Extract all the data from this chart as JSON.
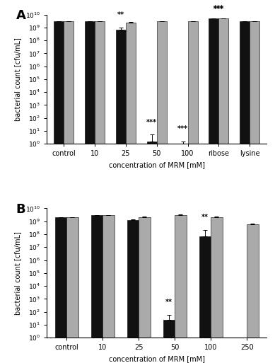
{
  "panel_A": {
    "categories": [
      "control",
      "10",
      "25",
      "50",
      "100",
      "ribose",
      "lysine"
    ],
    "black_values": [
      3000000000.0,
      3000000000.0,
      700000000.0,
      1.5,
      1.0,
      5000000000.0,
      3000000000.0
    ],
    "grey_values": [
      3000000000.0,
      3000000000.0,
      2500000000.0,
      3000000000.0,
      3000000000.0,
      5000000000.0,
      3000000000.0
    ],
    "black_errors": [
      150000000.0,
      150000000.0,
      250000000.0,
      3.5,
      0.5,
      200000000.0,
      150000000.0
    ],
    "grey_errors": [
      150000000.0,
      100000000.0,
      300000000.0,
      150000000.0,
      150000000.0,
      150000000.0,
      100000000.0
    ],
    "significance": [
      "",
      "",
      "**",
      "***",
      "***",
      "***",
      ""
    ],
    "sig_on_black": [
      false,
      false,
      true,
      true,
      true,
      false,
      false
    ],
    "sig_on_grey": [
      false,
      false,
      false,
      false,
      false,
      true,
      false
    ],
    "ylabel": "bacterial count [cfu/mL]",
    "xlabel": "concentration of MRM [mM]",
    "panel_label": "A"
  },
  "panel_B": {
    "categories": [
      "control",
      "10",
      "25",
      "50",
      "100",
      "250"
    ],
    "black_values": [
      2000000000.0,
      3000000000.0,
      1200000000.0,
      25,
      70000000.0,
      null
    ],
    "grey_values": [
      2000000000.0,
      3000000000.0,
      2000000000.0,
      3000000000.0,
      2000000000.0,
      600000000.0
    ],
    "black_errors": [
      150000000.0,
      150000000.0,
      200000000.0,
      35,
      150000000.0,
      null
    ],
    "grey_errors": [
      150000000.0,
      150000000.0,
      250000000.0,
      250000000.0,
      250000000.0,
      100000000.0
    ],
    "significance": [
      "",
      "",
      "",
      "**",
      "**",
      ""
    ],
    "sig_on_black": [
      false,
      false,
      false,
      true,
      true,
      false
    ],
    "sig_on_grey": [
      false,
      false,
      false,
      false,
      false,
      false
    ],
    "ylabel": "bacterial count [cfu/mL]",
    "xlabel": "concentration of MRM [mM]",
    "panel_label": "B"
  },
  "black_color": "#111111",
  "grey_color": "#aaaaaa",
  "bar_width": 0.32,
  "figsize": [
    3.89,
    5.13
  ],
  "dpi": 100
}
